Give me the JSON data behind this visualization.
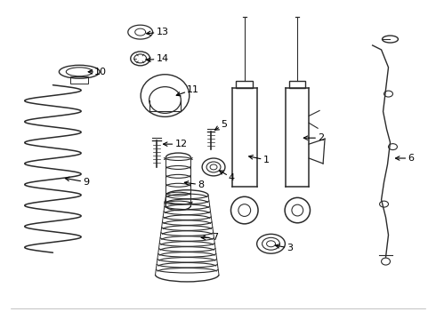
{
  "background_color": "#ffffff",
  "line_color": "#2a2a2a",
  "text_color": "#000000",
  "figure_width": 4.9,
  "figure_height": 3.6,
  "dpi": 100
}
